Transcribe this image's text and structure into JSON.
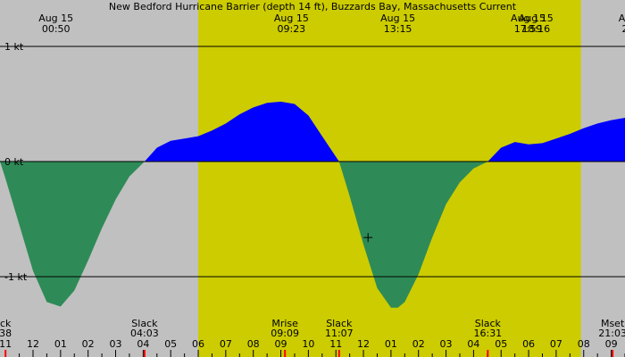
{
  "chart_data": {
    "type": "area",
    "title": "New Bedford Hurricane Barrier (depth 14 ft), Buzzards Bay, Massachusetts Current",
    "ylabel": "",
    "xlabel": "",
    "ylim": [
      -1.35,
      1.2
    ],
    "xlim_hours": [
      -1.2,
      21.5
    ],
    "colors": {
      "background": "#c0c0c0",
      "daylight": "#cccc00",
      "flood": "#0000ff",
      "ebb": "#2e8b57",
      "tick_event": "#ff0000"
    },
    "daylight_hours": [
      6.0,
      19.9
    ],
    "y_gridlines": [
      {
        "value": 1,
        "label": "1 kt"
      },
      {
        "value": 0,
        "label": "0 kt"
      },
      {
        "value": -1,
        "label": "-1 kt"
      }
    ],
    "top_events": [
      {
        "date": "Aug 15",
        "time": "00:50",
        "hour": 0.833
      },
      {
        "date": "Aug 15",
        "time": "09:23",
        "hour": 9.383
      },
      {
        "date": "Aug 15",
        "time": "13:15",
        "hour": 13.25
      },
      {
        "date": "Aug 15",
        "time": "17:59",
        "hour": 17.983
      },
      {
        "date": "Aug 15",
        "time": "18:16",
        "hour": 18.267
      },
      {
        "date": "Au",
        "time": "2",
        "hour": 21.5
      }
    ],
    "bottom_events": [
      {
        "label": "ck",
        "time": "38",
        "hour": -1.0
      },
      {
        "label": "Slack",
        "time": "04:03",
        "hour": 4.05
      },
      {
        "label": "Mrise",
        "time": "09:09",
        "hour": 9.15
      },
      {
        "label": "Slack",
        "time": "11:07",
        "hour": 11.117
      },
      {
        "label": "Slack",
        "time": "16:31",
        "hour": 16.517
      },
      {
        "label": "Mset",
        "time": "21:03",
        "hour": 21.05
      }
    ],
    "hour_ticks": [
      {
        "label": "11",
        "hour": -1
      },
      {
        "label": "12",
        "hour": 0
      },
      {
        "label": "01",
        "hour": 1
      },
      {
        "label": "02",
        "hour": 2
      },
      {
        "label": "03",
        "hour": 3
      },
      {
        "label": "04",
        "hour": 4
      },
      {
        "label": "05",
        "hour": 5
      },
      {
        "label": "06",
        "hour": 6
      },
      {
        "label": "07",
        "hour": 7
      },
      {
        "label": "08",
        "hour": 8
      },
      {
        "label": "09",
        "hour": 9
      },
      {
        "label": "10",
        "hour": 10
      },
      {
        "label": "11",
        "hour": 11
      },
      {
        "label": "12",
        "hour": 12
      },
      {
        "label": "01",
        "hour": 13
      },
      {
        "label": "02",
        "hour": 14
      },
      {
        "label": "03",
        "hour": 15
      },
      {
        "label": "04",
        "hour": 16
      },
      {
        "label": "05",
        "hour": 17
      },
      {
        "label": "06",
        "hour": 18
      },
      {
        "label": "07",
        "hour": 19
      },
      {
        "label": "08",
        "hour": 20
      },
      {
        "label": "09",
        "hour": 21
      }
    ],
    "series": [
      {
        "x": [
          -1.2,
          -1.0,
          -0.5,
          0.0,
          0.5,
          1.0,
          1.5,
          2.0,
          2.5,
          3.0,
          3.5,
          4.05,
          4.5,
          5.0,
          5.5,
          6.0,
          6.5,
          7.0,
          7.5,
          8.0,
          8.5,
          9.0,
          9.5,
          10.0,
          10.5,
          11.117,
          11.5,
          12.0,
          12.5,
          13.0,
          13.25,
          13.5,
          14.0,
          14.5,
          15.0,
          15.5,
          16.0,
          16.517,
          17.0,
          17.5,
          18.0,
          18.5,
          19.0,
          19.5,
          20.0,
          20.5,
          21.0,
          21.5
        ],
        "values": [
          0.0,
          -0.15,
          -0.55,
          -0.95,
          -1.22,
          -1.26,
          -1.12,
          -0.86,
          -0.58,
          -0.33,
          -0.13,
          0.0,
          0.12,
          0.18,
          0.2,
          0.22,
          0.27,
          0.33,
          0.41,
          0.47,
          0.51,
          0.52,
          0.5,
          0.4,
          0.22,
          0.0,
          -0.3,
          -0.72,
          -1.1,
          -1.27,
          -1.27,
          -1.22,
          -0.98,
          -0.66,
          -0.37,
          -0.18,
          -0.06,
          0.0,
          0.12,
          0.17,
          0.15,
          0.16,
          0.2,
          0.24,
          0.29,
          0.33,
          0.36,
          0.38
        ]
      }
    ],
    "marker": {
      "hour": 12.167,
      "value": -0.66
    }
  }
}
